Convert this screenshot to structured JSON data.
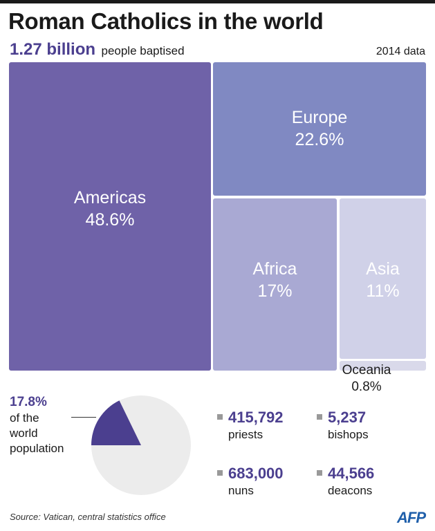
{
  "header": {
    "title": "Roman Catholics in the world",
    "baptised_number": "1.27 billion",
    "baptised_text": "people baptised",
    "year": "2014 data"
  },
  "chart_data": {
    "type": "treemap",
    "unit": "%",
    "categories": [
      "Americas",
      "Europe",
      "Africa",
      "Asia",
      "Oceania"
    ],
    "values": [
      48.6,
      22.6,
      17,
      11,
      0.8
    ],
    "labels": [
      "48.6%",
      "22.6%",
      "17%",
      "11%",
      "0.8%"
    ],
    "colors": [
      "#6f62a8",
      "#8089c2",
      "#a9a9d3",
      "#d0d1e8",
      "#d9d9ea"
    ]
  },
  "population": {
    "value": "17.8%",
    "line1": "of the",
    "line2": "world",
    "line3": "population",
    "fraction": 0.178,
    "slice_color": "#4b3f8f",
    "rest_color": "#ececec"
  },
  "stats": [
    {
      "value": "415,792",
      "label": "priests"
    },
    {
      "value": "5,237",
      "label": "bishops"
    },
    {
      "value": "683,000",
      "label": "nuns"
    },
    {
      "value": "44,566",
      "label": "deacons"
    }
  ],
  "footer": {
    "source": "Source: Vatican, central statistics office",
    "logo": "AFP"
  }
}
